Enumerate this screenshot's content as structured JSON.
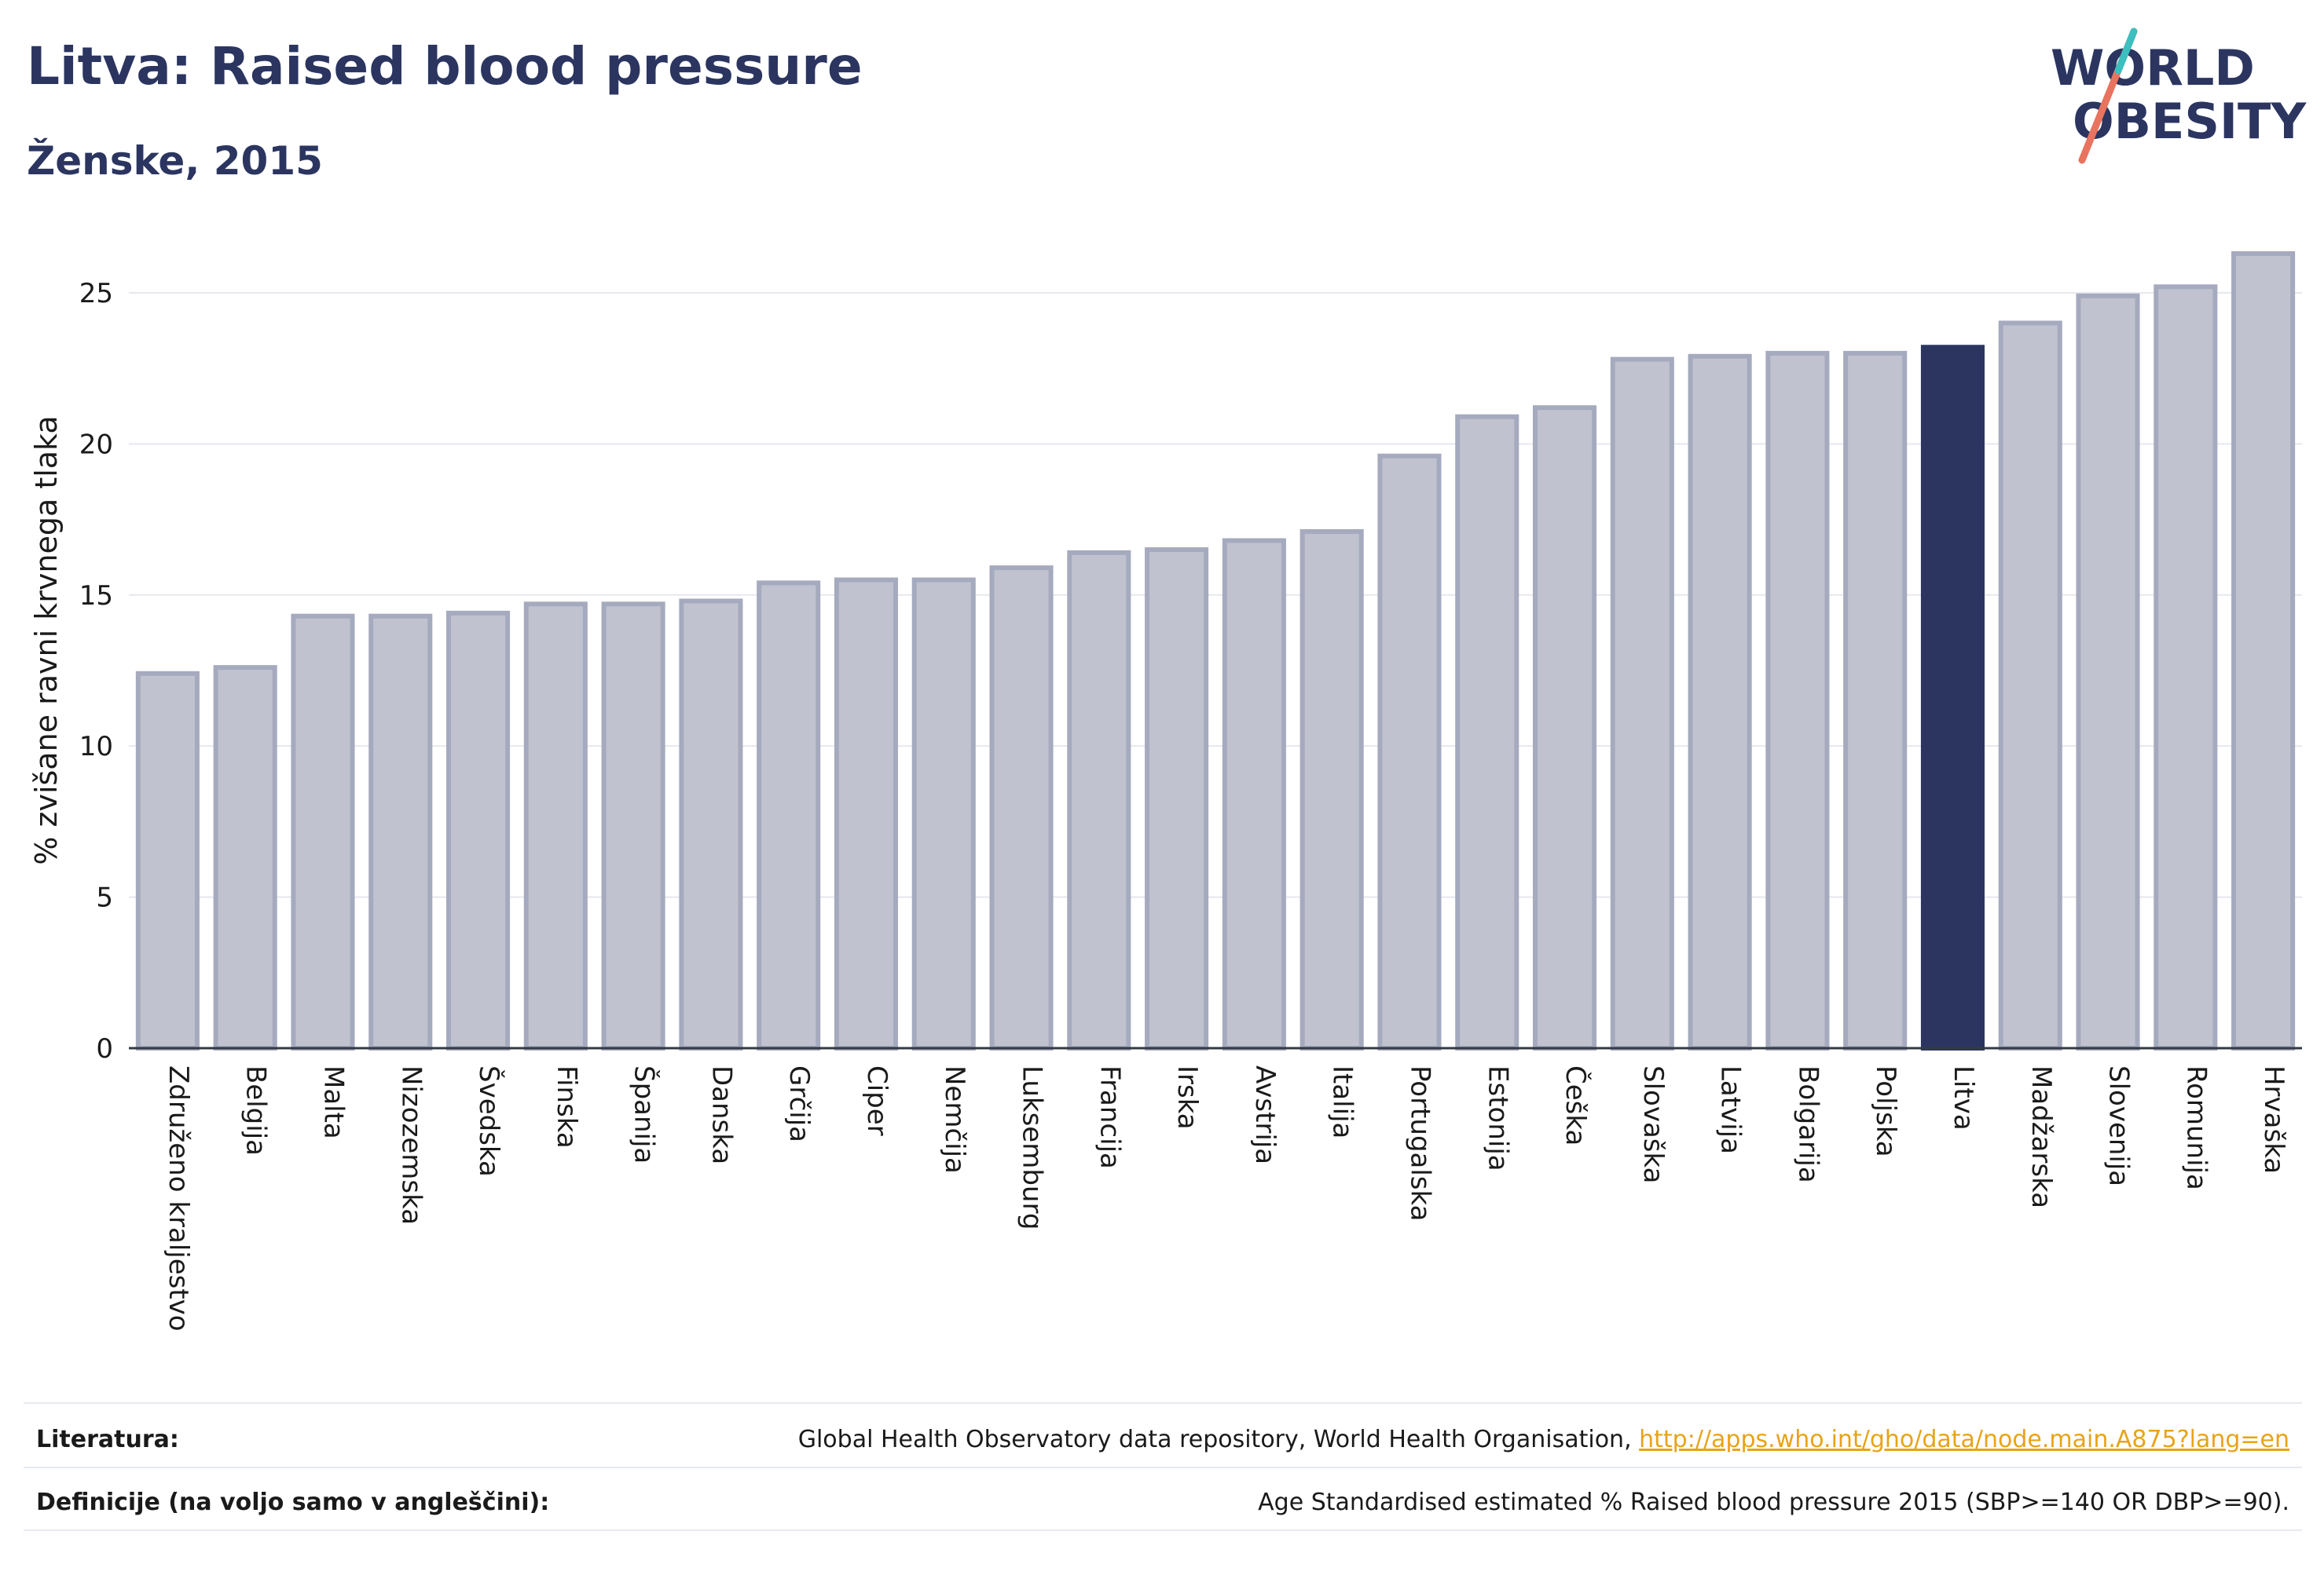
{
  "header": {
    "title": "Litva: Raised blood pressure",
    "subtitle": "Ženske, 2015"
  },
  "logo": {
    "line1": "WORLD",
    "line2": "OBESITY"
  },
  "chart_data": {
    "type": "bar",
    "ylabel": "% zvišane ravni krvnega tlaka",
    "ylim": [
      0,
      27
    ],
    "yticks": [
      0,
      5,
      10,
      15,
      20,
      25
    ],
    "grid": true,
    "highlight": "Litva",
    "categories": [
      "Združeno kraljestvo",
      "Belgija",
      "Malta",
      "Nizozemska",
      "Švedska",
      "Finska",
      "Španija",
      "Danska",
      "Grčija",
      "Ciper",
      "Nemčija",
      "Luksemburg",
      "Francija",
      "Irska",
      "Avstrija",
      "Italija",
      "Portugalska",
      "Estonija",
      "Češka",
      "Slovaška",
      "Latvija",
      "Bolgarija",
      "Poljska",
      "Litva",
      "Madžarska",
      "Slovenija",
      "Romunija",
      "Hrvaška"
    ],
    "values": [
      12.4,
      12.6,
      14.3,
      14.3,
      14.4,
      14.7,
      14.7,
      14.8,
      15.4,
      15.5,
      15.5,
      15.9,
      16.4,
      16.5,
      16.8,
      17.1,
      19.6,
      20.9,
      21.2,
      22.8,
      22.9,
      23.0,
      23.0,
      23.2,
      24.0,
      24.9,
      25.2,
      26.3
    ],
    "colors": {
      "default_fill": "#c0c3cf",
      "default_stroke": "#a5aabe",
      "highlight": "#2b3560"
    }
  },
  "footer": {
    "literature_label": "Literatura:",
    "literature_text": "Global Health Observatory data repository, World Health Organisation, ",
    "literature_link": "http://apps.who.int/gho/data/node.main.A875?lang=en",
    "definitions_label": "Definicije (na voljo samo v angleščini):",
    "definitions_text": "Age Standardised estimated % Raised blood pressure 2015 (SBP>=140 OR DBP>=90)."
  }
}
